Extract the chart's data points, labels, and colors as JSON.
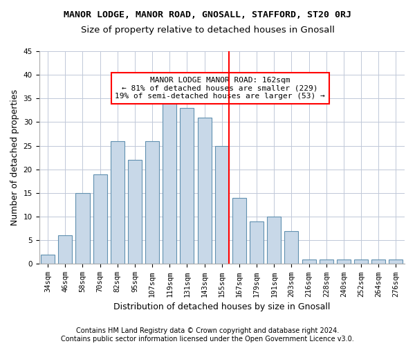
{
  "title1": "MANOR LODGE, MANOR ROAD, GNOSALL, STAFFORD, ST20 0RJ",
  "title2": "Size of property relative to detached houses in Gnosall",
  "xlabel": "Distribution of detached houses by size in Gnosall",
  "ylabel": "Number of detached properties",
  "categories": [
    "34sqm",
    "46sqm",
    "58sqm",
    "70sqm",
    "82sqm",
    "95sqm",
    "107sqm",
    "119sqm",
    "131sqm",
    "143sqm",
    "155sqm",
    "167sqm",
    "179sqm",
    "191sqm",
    "203sqm",
    "216sqm",
    "228sqm",
    "240sqm",
    "252sqm",
    "264sqm",
    "276sqm"
  ],
  "values": [
    2,
    6,
    15,
    19,
    26,
    22,
    26,
    34,
    33,
    31,
    25,
    14,
    9,
    10,
    7,
    1,
    1,
    1,
    1,
    1,
    1
  ],
  "bar_color": "#c8d8e8",
  "bar_edge_color": "#6090b0",
  "grid_color": "#c0c8d8",
  "marker_line_color": "red",
  "annotation_line1": "MANOR LODGE MANOR ROAD: 162sqm",
  "annotation_line2": "← 81% of detached houses are smaller (229)",
  "annotation_line3": "19% of semi-detached houses are larger (53) →",
  "annotation_box_color": "red",
  "footer1": "Contains HM Land Registry data © Crown copyright and database right 2024.",
  "footer2": "Contains public sector information licensed under the Open Government Licence v3.0.",
  "ylim": [
    0,
    45
  ],
  "yticks": [
    0,
    5,
    10,
    15,
    20,
    25,
    30,
    35,
    40,
    45
  ],
  "title1_fontsize": 9.5,
  "title2_fontsize": 9.5,
  "xlabel_fontsize": 9,
  "ylabel_fontsize": 9,
  "tick_fontsize": 7.5,
  "footer_fontsize": 7,
  "annotation_fontsize": 8,
  "marker_bar_idx": 10
}
